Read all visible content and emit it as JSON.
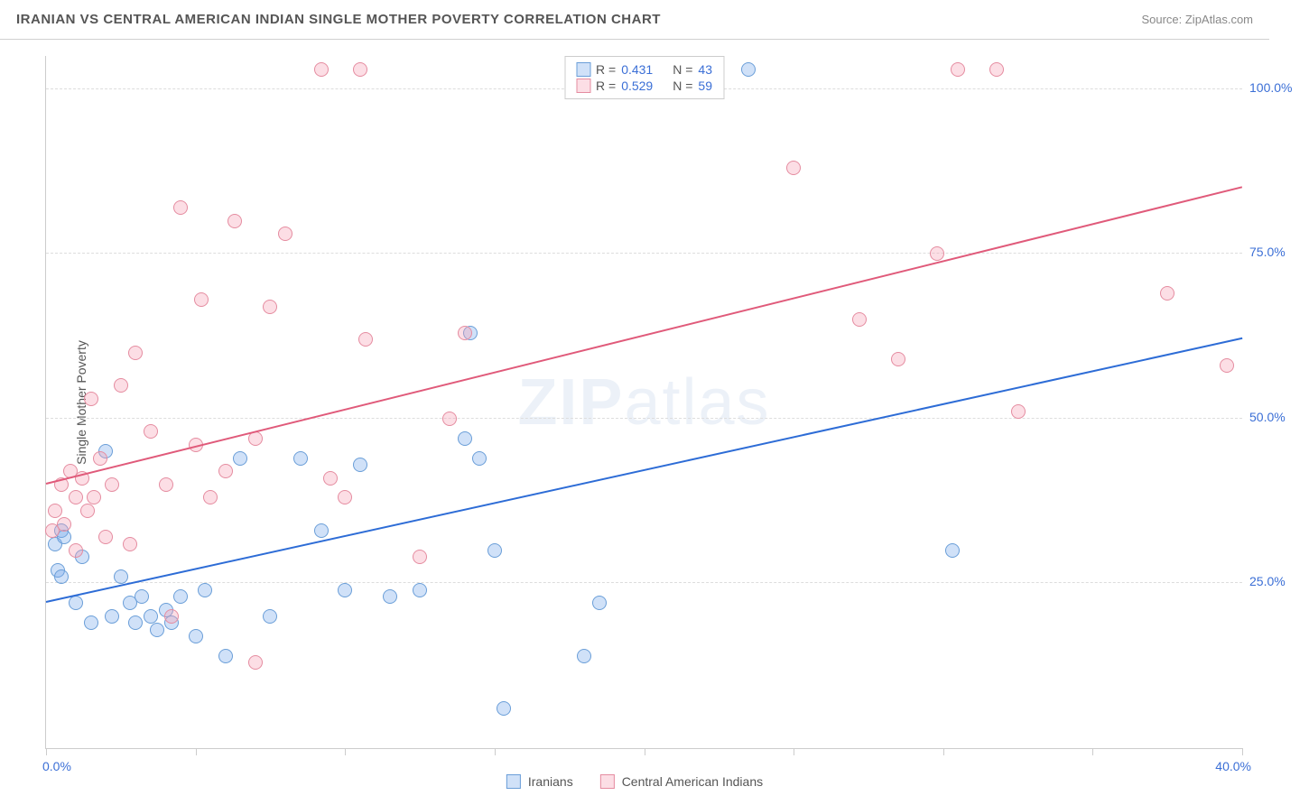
{
  "header": {
    "title": "IRANIAN VS CENTRAL AMERICAN INDIAN SINGLE MOTHER POVERTY CORRELATION CHART",
    "source": "Source: ZipAtlas.com"
  },
  "chart": {
    "type": "scatter",
    "background_color": "#ffffff",
    "grid_color": "#dddddd",
    "axis_color": "#cccccc",
    "tick_label_color": "#3b6fd6",
    "axis_label_color": "#555555",
    "y_axis_label": "Single Mother Poverty",
    "xlim": [
      0,
      40
    ],
    "ylim": [
      0,
      105
    ],
    "x_ticks": [
      0,
      5,
      10,
      15,
      20,
      25,
      30,
      35,
      40
    ],
    "x_tick_labels": {
      "left": "0.0%",
      "right": "40.0%"
    },
    "y_gridlines": [
      25,
      50,
      75,
      100
    ],
    "y_tick_labels": [
      "25.0%",
      "50.0%",
      "75.0%",
      "100.0%"
    ],
    "tick_fontsize": 14,
    "axis_label_fontsize": 14,
    "marker_radius": 8,
    "marker_border_width": 1.5,
    "watermark": "ZIPatlas",
    "series": [
      {
        "name": "Iranians",
        "fill_color": "rgba(120,170,235,0.35)",
        "border_color": "#6a9ed8",
        "trend_color": "#2d6cd6",
        "r": "0.431",
        "n": "43",
        "trend": {
          "x0": 0,
          "y0": 22,
          "x1": 40,
          "y1": 62
        },
        "points": [
          [
            0.3,
            31
          ],
          [
            0.4,
            27
          ],
          [
            0.5,
            33
          ],
          [
            0.5,
            26
          ],
          [
            0.6,
            32
          ],
          [
            1.0,
            22
          ],
          [
            1.2,
            29
          ],
          [
            1.5,
            19
          ],
          [
            2.0,
            45
          ],
          [
            2.2,
            20
          ],
          [
            2.5,
            26
          ],
          [
            2.8,
            22
          ],
          [
            3.0,
            19
          ],
          [
            3.2,
            23
          ],
          [
            3.5,
            20
          ],
          [
            3.7,
            18
          ],
          [
            4.0,
            21
          ],
          [
            4.2,
            19
          ],
          [
            4.5,
            23
          ],
          [
            5.0,
            17
          ],
          [
            5.3,
            24
          ],
          [
            6.0,
            14
          ],
          [
            6.5,
            44
          ],
          [
            7.5,
            20
          ],
          [
            8.5,
            44
          ],
          [
            9.2,
            33
          ],
          [
            10.0,
            24
          ],
          [
            10.5,
            43
          ],
          [
            11.5,
            23
          ],
          [
            12.5,
            24
          ],
          [
            14.0,
            47
          ],
          [
            14.2,
            63
          ],
          [
            14.5,
            44
          ],
          [
            15.0,
            30
          ],
          [
            15.3,
            6
          ],
          [
            18.0,
            14
          ],
          [
            18.5,
            22
          ],
          [
            23.5,
            103
          ],
          [
            30.3,
            30
          ]
        ]
      },
      {
        "name": "Central American Indians",
        "fill_color": "rgba(245,160,180,0.35)",
        "border_color": "#e58ca0",
        "trend_color": "#e05a7a",
        "r": "0.529",
        "n": "59",
        "trend": {
          "x0": 0,
          "y0": 40,
          "x1": 40,
          "y1": 85
        },
        "points": [
          [
            0.2,
            33
          ],
          [
            0.3,
            36
          ],
          [
            0.5,
            40
          ],
          [
            0.6,
            34
          ],
          [
            0.8,
            42
          ],
          [
            1.0,
            38
          ],
          [
            1.0,
            30
          ],
          [
            1.2,
            41
          ],
          [
            1.4,
            36
          ],
          [
            1.5,
            53
          ],
          [
            1.6,
            38
          ],
          [
            1.8,
            44
          ],
          [
            2.0,
            32
          ],
          [
            2.2,
            40
          ],
          [
            2.5,
            55
          ],
          [
            2.8,
            31
          ],
          [
            3.0,
            60
          ],
          [
            3.5,
            48
          ],
          [
            4.0,
            40
          ],
          [
            4.2,
            20
          ],
          [
            4.5,
            82
          ],
          [
            5.0,
            46
          ],
          [
            5.2,
            68
          ],
          [
            5.5,
            38
          ],
          [
            6.0,
            42
          ],
          [
            6.3,
            80
          ],
          [
            7.0,
            13
          ],
          [
            7.0,
            47
          ],
          [
            7.5,
            67
          ],
          [
            8.0,
            78
          ],
          [
            9.2,
            103
          ],
          [
            9.5,
            41
          ],
          [
            10.0,
            38
          ],
          [
            10.5,
            103
          ],
          [
            10.7,
            62
          ],
          [
            12.5,
            29
          ],
          [
            13.5,
            50
          ],
          [
            14.0,
            63
          ],
          [
            25.0,
            88
          ],
          [
            27.2,
            65
          ],
          [
            28.5,
            59
          ],
          [
            29.8,
            75
          ],
          [
            30.5,
            103
          ],
          [
            31.8,
            103
          ],
          [
            32.5,
            51
          ],
          [
            37.5,
            69
          ],
          [
            39.5,
            58
          ]
        ]
      }
    ],
    "legend_top": {
      "r_label": "R  =",
      "n_label": "N  ="
    },
    "legend_bottom_labels": [
      "Iranians",
      "Central American Indians"
    ]
  }
}
